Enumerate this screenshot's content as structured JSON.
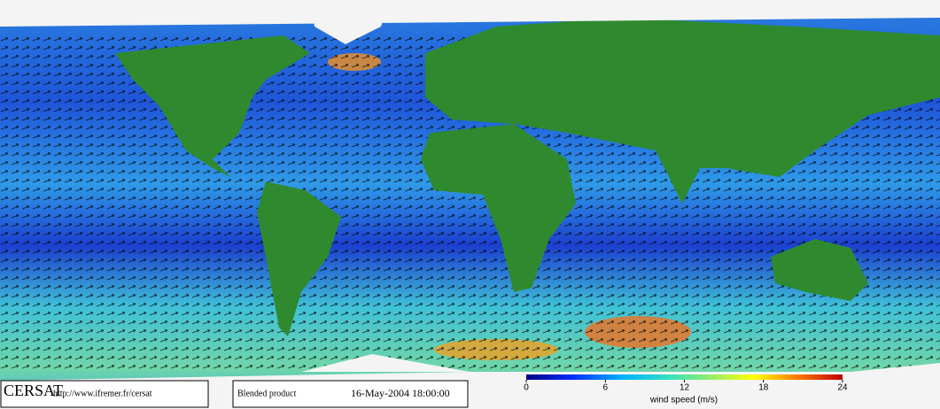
{
  "footer": {
    "logo": "CERSAT",
    "url": "http://www.ifremer.fr/cersat",
    "product": "Blended product",
    "timestamp": "16-May-2004 18:00:00"
  },
  "colorbar": {
    "range": [
      0,
      24
    ],
    "ticks": [
      0,
      6,
      12,
      18,
      24
    ],
    "label": "wind speed (m/s)"
  }
}
